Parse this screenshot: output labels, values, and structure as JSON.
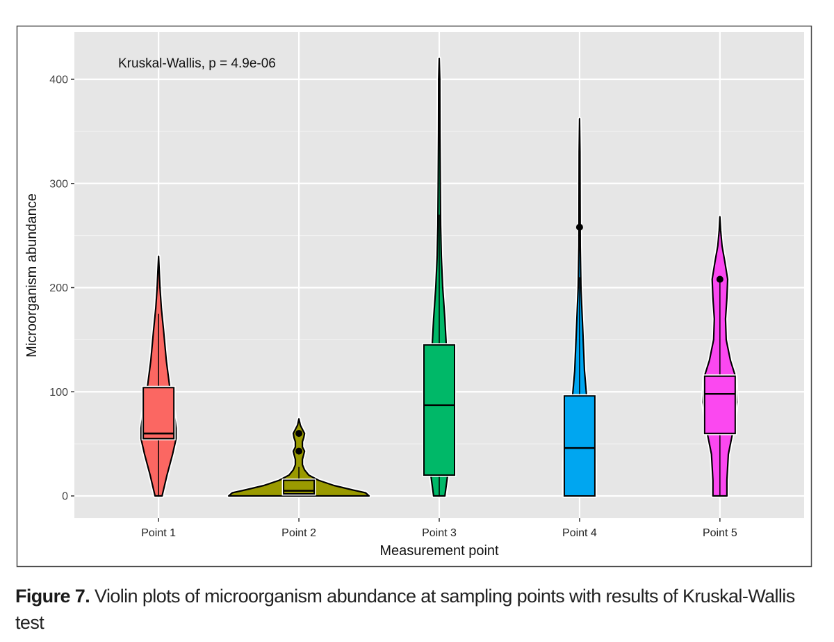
{
  "chart_data": {
    "type": "violin",
    "title": "",
    "annotation": "Kruskal-Wallis, p = 4.9e-06",
    "xlabel": "Measurement point",
    "ylabel": "Microorganism abundance",
    "categories": [
      "Point 1",
      "Point 2",
      "Point 3",
      "Point 4",
      "Point 5"
    ],
    "ylim": [
      -20,
      440
    ],
    "yticks": [
      0,
      100,
      200,
      300,
      400
    ],
    "ytick_labels": [
      "0",
      "100",
      "200",
      "300",
      "400"
    ],
    "grid": true,
    "legend": "none",
    "series": [
      {
        "name": "Point 1",
        "color": "#F8766D",
        "min": 0,
        "max": 230,
        "box": {
          "q1": 55,
          "median": 60,
          "q3": 104,
          "whisker_low": 0,
          "whisker_high": 175
        },
        "outliers": [],
        "density": [
          [
            0,
            0.05
          ],
          [
            20,
            0.12
          ],
          [
            40,
            0.2
          ],
          [
            55,
            0.25
          ],
          [
            65,
            0.25
          ],
          [
            80,
            0.22
          ],
          [
            104,
            0.16
          ],
          [
            130,
            0.11
          ],
          [
            160,
            0.07
          ],
          [
            180,
            0.04
          ],
          [
            200,
            0.02
          ],
          [
            215,
            0.01
          ],
          [
            230,
            0.0
          ]
        ]
      },
      {
        "name": "Point 2",
        "color": "#A3A500",
        "min": 0,
        "max": 74,
        "box": {
          "q1": 2,
          "median": 5,
          "q3": 15,
          "whisker_low": 0,
          "whisker_high": 28
        },
        "outliers": [
          43,
          60
        ],
        "density": [
          [
            0,
            1.0
          ],
          [
            3,
            0.95
          ],
          [
            6,
            0.75
          ],
          [
            10,
            0.5
          ],
          [
            15,
            0.28
          ],
          [
            20,
            0.14
          ],
          [
            25,
            0.08
          ],
          [
            30,
            0.05
          ],
          [
            35,
            0.05
          ],
          [
            40,
            0.07
          ],
          [
            43,
            0.08
          ],
          [
            47,
            0.05
          ],
          [
            52,
            0.05
          ],
          [
            56,
            0.07
          ],
          [
            60,
            0.08
          ],
          [
            64,
            0.05
          ],
          [
            68,
            0.02
          ],
          [
            74,
            0.0
          ]
        ]
      },
      {
        "name": "Point 3",
        "color": "#00BF7D",
        "min": 0,
        "max": 420,
        "box": {
          "q1": 20,
          "median": 87,
          "q3": 145,
          "whisker_low": 0,
          "whisker_high": 270
        },
        "outliers": [],
        "density": [
          [
            0,
            0.08
          ],
          [
            20,
            0.12
          ],
          [
            60,
            0.14
          ],
          [
            100,
            0.13
          ],
          [
            145,
            0.1
          ],
          [
            170,
            0.08
          ],
          [
            200,
            0.05
          ],
          [
            230,
            0.03
          ],
          [
            260,
            0.02
          ],
          [
            300,
            0.015
          ],
          [
            350,
            0.01
          ],
          [
            400,
            0.008
          ],
          [
            420,
            0.0
          ]
        ]
      },
      {
        "name": "Point 4",
        "color": "#00B0F6",
        "min": 0,
        "max": 362,
        "box": {
          "q1": 0,
          "median": 46,
          "q3": 96,
          "whisker_low": 0,
          "whisker_high": 210
        },
        "outliers": [
          258
        ],
        "density": [
          [
            0,
            0.22
          ],
          [
            30,
            0.22
          ],
          [
            60,
            0.2
          ],
          [
            96,
            0.1
          ],
          [
            120,
            0.07
          ],
          [
            160,
            0.045
          ],
          [
            200,
            0.02
          ],
          [
            240,
            0.01
          ],
          [
            280,
            0.008
          ],
          [
            330,
            0.006
          ],
          [
            362,
            0.0
          ]
        ]
      },
      {
        "name": "Point 5",
        "color": "#E76BF3",
        "min": 0,
        "max": 268,
        "box": {
          "q1": 60,
          "median": 98,
          "q3": 115,
          "whisker_low": 0,
          "whisker_high": 208
        },
        "outliers": [
          208
        ],
        "density": [
          [
            0,
            0.1
          ],
          [
            15,
            0.1
          ],
          [
            40,
            0.12
          ],
          [
            60,
            0.18
          ],
          [
            90,
            0.24
          ],
          [
            115,
            0.22
          ],
          [
            130,
            0.15
          ],
          [
            150,
            0.09
          ],
          [
            170,
            0.08
          ],
          [
            190,
            0.1
          ],
          [
            208,
            0.11
          ],
          [
            225,
            0.07
          ],
          [
            240,
            0.03
          ],
          [
            255,
            0.01
          ],
          [
            268,
            0.0
          ]
        ]
      }
    ],
    "fill_colors": {
      "Point 1": "#FB6762",
      "Point 2": "#9A9A00",
      "Point 3": "#00B868",
      "Point 4": "#00A6F0",
      "Point 5": "#FB48F0"
    }
  },
  "caption": {
    "label": "Figure 7.",
    "text": " Violin plots of microorganism abundance at sampling points with results of Kruskal-Wallis test"
  }
}
